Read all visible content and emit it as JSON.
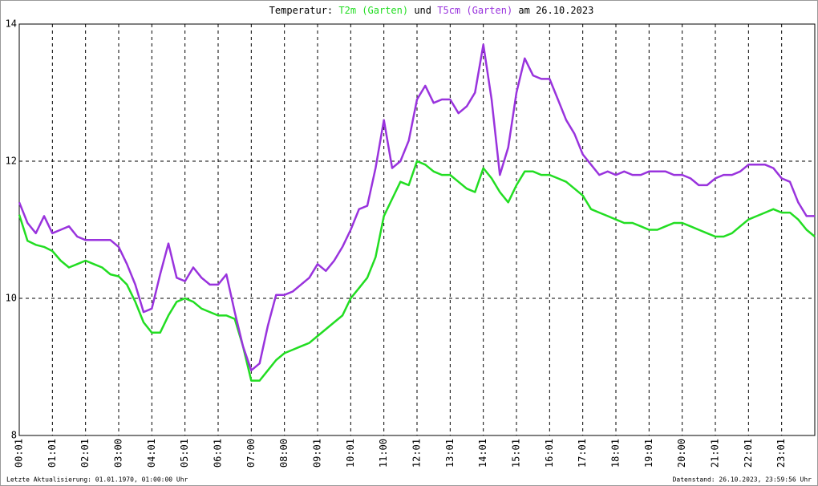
{
  "chart_data": {
    "type": "line",
    "title_prefix": "Temperatur:",
    "title_join": "und",
    "title_suffix": "am 26.10.2023",
    "footer_left": "Letzte Aktualisierung: 01.01.1970, 01:00:00 Uhr",
    "footer_right": "Datenstand: 26.10.2023, 23:59:56 Uhr",
    "categories": [
      "00:01",
      null,
      null,
      null,
      "01:01",
      null,
      null,
      null,
      "02:01",
      null,
      null,
      null,
      "03:00",
      null,
      null,
      null,
      "04:01",
      null,
      null,
      null,
      "05:01",
      null,
      null,
      null,
      "06:01",
      null,
      null,
      null,
      "07:00",
      null,
      null,
      null,
      "08:00",
      null,
      null,
      null,
      "09:01",
      null,
      null,
      null,
      "10:01",
      null,
      null,
      null,
      "11:00",
      null,
      null,
      null,
      "12:01",
      null,
      null,
      null,
      "13:01",
      null,
      null,
      null,
      "14:01",
      null,
      null,
      null,
      "15:01",
      null,
      null,
      null,
      "16:01",
      null,
      null,
      null,
      "17:01",
      null,
      null,
      null,
      "18:01",
      null,
      null,
      null,
      "19:01",
      null,
      null,
      null,
      "20:00",
      null,
      null,
      null,
      "21:01",
      null,
      null,
      null,
      "22:01",
      null,
      null,
      null,
      "23:01",
      null,
      null,
      null,
      null
    ],
    "ylim": [
      8,
      14
    ],
    "yticks": [
      8,
      10,
      12,
      14
    ],
    "grid": true,
    "series": [
      {
        "name": "T2m (Garten)",
        "color": "#22dd22",
        "values": [
          11.22,
          10.84,
          10.78,
          10.75,
          10.69,
          10.55,
          10.45,
          10.5,
          10.55,
          10.5,
          10.45,
          10.35,
          10.32,
          10.2,
          9.95,
          9.65,
          9.5,
          9.5,
          9.75,
          9.95,
          10.0,
          9.95,
          9.85,
          9.8,
          9.75,
          9.75,
          9.7,
          9.3,
          8.8,
          8.8,
          8.95,
          9.1,
          9.2,
          9.25,
          9.3,
          9.35,
          9.45,
          9.55,
          9.65,
          9.75,
          10.0,
          10.15,
          10.3,
          10.6,
          11.2,
          11.45,
          11.7,
          11.65,
          12.0,
          11.95,
          11.85,
          11.8,
          11.8,
          11.7,
          11.6,
          11.55,
          11.9,
          11.75,
          11.55,
          11.4,
          11.65,
          11.85,
          11.85,
          11.8,
          11.8,
          11.75,
          11.7,
          11.6,
          11.5,
          11.3,
          11.25,
          11.2,
          11.15,
          11.1,
          11.1,
          11.05,
          11.0,
          11.0,
          11.05,
          11.1,
          11.1,
          11.05,
          11.0,
          10.95,
          10.9,
          10.9,
          10.95,
          11.05,
          11.15,
          11.2,
          11.25,
          11.3,
          11.25,
          11.25,
          11.15,
          11.0,
          10.9
        ]
      },
      {
        "name": "T5cm (Garten)",
        "color": "#9933dd",
        "values": [
          11.4,
          11.1,
          10.95,
          11.2,
          10.95,
          11.0,
          11.05,
          10.9,
          10.85,
          10.85,
          10.85,
          10.85,
          10.75,
          10.5,
          10.2,
          9.8,
          9.85,
          10.35,
          10.8,
          10.3,
          10.25,
          10.45,
          10.3,
          10.2,
          10.2,
          10.35,
          9.8,
          9.3,
          8.95,
          9.05,
          9.6,
          10.05,
          10.05,
          10.1,
          10.2,
          10.3,
          10.5,
          10.4,
          10.55,
          10.75,
          11.0,
          11.3,
          11.35,
          11.9,
          12.6,
          11.9,
          12.0,
          12.3,
          12.9,
          13.1,
          12.85,
          12.9,
          12.9,
          12.7,
          12.8,
          13.0,
          13.7,
          12.9,
          11.8,
          12.2,
          13.0,
          13.5,
          13.25,
          13.2,
          13.2,
          12.9,
          12.6,
          12.4,
          12.1,
          11.95,
          11.8,
          11.85,
          11.8,
          11.85,
          11.8,
          11.8,
          11.85,
          11.85,
          11.85,
          11.8,
          11.8,
          11.75,
          11.65,
          11.65,
          11.75,
          11.8,
          11.8,
          11.85,
          11.95,
          11.95,
          11.95,
          11.9,
          11.75,
          11.7,
          11.4,
          11.2,
          11.2
        ]
      }
    ]
  }
}
